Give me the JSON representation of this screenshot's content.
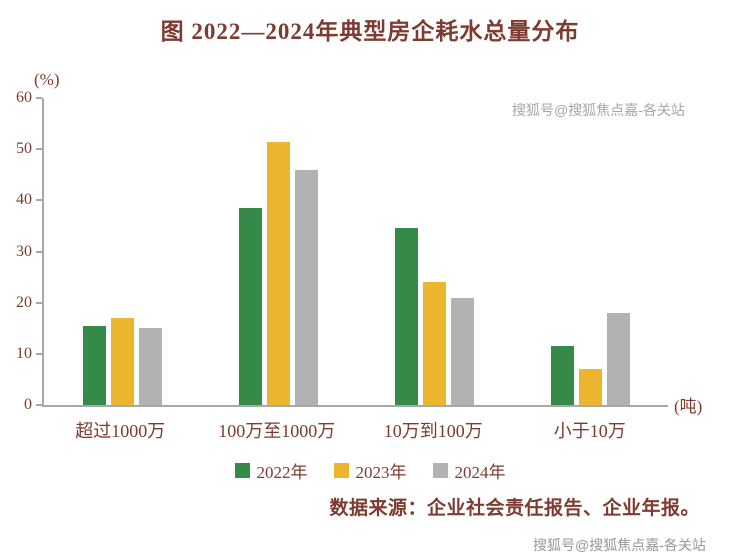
{
  "chart_data": {
    "type": "bar",
    "title": "图  2022—2024年典型房企耗水总量分布",
    "y_unit": "(%)",
    "x_unit": "(吨)",
    "ylim": [
      0,
      60
    ],
    "yticks": [
      0,
      10,
      20,
      30,
      40,
      50,
      60
    ],
    "grid": "off",
    "legend_position": "bottom-center",
    "categories": [
      "超过1000万",
      "100万至1000万",
      "10万到100万",
      "小于10万"
    ],
    "series": [
      {
        "name": "2022年",
        "color": "#348a46",
        "values": [
          15.5,
          38.5,
          34.5,
          11.5
        ]
      },
      {
        "name": "2023年",
        "color": "#ebb52d",
        "values": [
          17,
          51.5,
          24,
          7
        ]
      },
      {
        "name": "2024年",
        "color": "#b2b2b2",
        "values": [
          15,
          46,
          21,
          18
        ]
      }
    ],
    "source": "数据来源：企业社会责任报告、企业年报。"
  },
  "watermark": {
    "top": "搜狐号@搜狐焦点嘉-各关站",
    "bottom": "搜狐号@搜狐焦点嘉-各关站"
  }
}
